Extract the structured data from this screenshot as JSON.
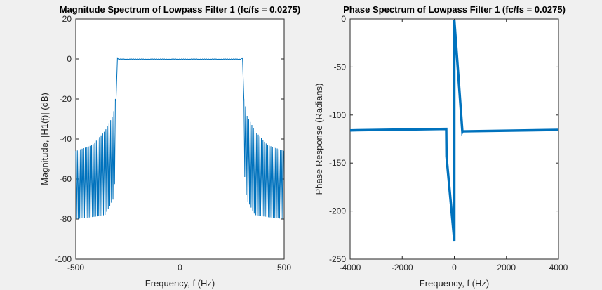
{
  "chart_data": [
    {
      "type": "line",
      "title": "Magnitude Spectrum of Lowpass Filter 1 (fc/fs = 0.0275)",
      "xlabel": "Frequency, f (Hz)",
      "ylabel": "Magnitude, |H1(f)| (dB)",
      "xlim": [
        -500,
        500
      ],
      "ylim": [
        -100,
        20
      ],
      "xticks": [
        "-500",
        "0",
        "500"
      ],
      "yticks": [
        "20",
        "0",
        "-20",
        "-40",
        "-60",
        "-80",
        "-100"
      ],
      "grid": false,
      "line_color": "#0072bd",
      "series": [
        {
          "description_points": {
            "passband": {
              "x": [
                -300,
                300
              ],
              "y": [
                0,
                0
              ],
              "ripple_db": 0.6
            },
            "transition_edges_hz": [
              -307,
              307
            ],
            "stopband_upper_envelope": {
              "x": [
                -500,
                -420,
                -360,
                -320,
                -310
              ],
              "y": [
                -46,
                -43,
                -36,
                -28,
                -20
              ]
            },
            "stopband_lower_envelope": {
              "x": [
                -500,
                -420,
                -360,
                -320,
                -310
              ],
              "y": [
                -80,
                -79,
                -78,
                -70,
                -58
              ]
            }
          }
        }
      ]
    },
    {
      "type": "line",
      "title": "Phase Spectrum of Lowpass Filter 1 (fc/fs = 0.0275)",
      "xlabel": "Frequency, f (Hz)",
      "ylabel": "Phase Response  (Radians)",
      "xlim": [
        -4000,
        4000
      ],
      "ylim": [
        -250,
        0
      ],
      "xticks": [
        "-4000",
        "-2000",
        "0",
        "2000",
        "4000"
      ],
      "yticks": [
        "0",
        "-50",
        "-100",
        "-150",
        "-200",
        "-250"
      ],
      "grid": false,
      "line_color": "#0072bd",
      "series": [
        {
          "x": [
            -4000,
            -310,
            -300,
            0,
            0,
            310,
            320,
            4000
          ],
          "y": [
            -116,
            -114.5,
            -143,
            -231,
            -1,
            -117.5,
            -117,
            -115.5
          ]
        }
      ]
    }
  ]
}
